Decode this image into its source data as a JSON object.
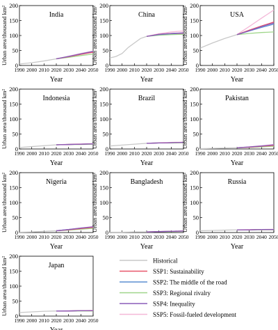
{
  "figure": {
    "ylabel": "Urban area/thousand km²",
    "xlabel": "Year"
  },
  "legend": [
    {
      "key": "historical",
      "label": "Historical",
      "color": "#c8c8c8"
    },
    {
      "key": "ssp1",
      "label": "SSP1: Sustainability",
      "color": "#e8566a"
    },
    {
      "key": "ssp2",
      "label": "SSP2: The middle of the road",
      "color": "#5b8fd1"
    },
    {
      "key": "ssp3",
      "label": "SSP3: Regional rivalry",
      "color": "#9fd68a"
    },
    {
      "key": "ssp4",
      "label": "SSP4: Inequality",
      "color": "#8a5bb8"
    },
    {
      "key": "ssp5",
      "label": "SSP5: Fossil-fueled development",
      "color": "#f4b8d8"
    }
  ],
  "chart_data": [
    {
      "type": "line",
      "title": "India",
      "ylim": [
        0,
        200
      ],
      "xlim": [
        1990,
        2050
      ],
      "yticks": [
        0,
        50,
        100,
        150,
        200
      ],
      "xticks": [
        1990,
        2000,
        2010,
        2020,
        2030,
        2040,
        2050
      ],
      "historical": {
        "x": [
          1990,
          2000,
          2010,
          2020
        ],
        "y": [
          5,
          9,
          15,
          22
        ]
      },
      "x": [
        2020,
        2030,
        2040,
        2050
      ],
      "series": [
        {
          "key": "ssp1",
          "values": [
            22,
            29,
            37,
            44
          ]
        },
        {
          "key": "ssp2",
          "values": [
            22,
            30,
            38,
            46
          ]
        },
        {
          "key": "ssp3",
          "values": [
            22,
            27,
            33,
            38
          ]
        },
        {
          "key": "ssp4",
          "values": [
            22,
            30,
            39,
            47
          ]
        },
        {
          "key": "ssp5",
          "values": [
            22,
            31,
            40,
            48
          ]
        }
      ]
    },
    {
      "type": "line",
      "title": "China",
      "ylim": [
        0,
        200
      ],
      "xlim": [
        1990,
        2050
      ],
      "yticks": [
        0,
        50,
        100,
        150,
        200
      ],
      "xticks": [
        1990,
        2000,
        2010,
        2020,
        2030,
        2040,
        2050
      ],
      "historical": {
        "x": [
          1990,
          1995,
          2000,
          2005,
          2010,
          2015,
          2020
        ],
        "y": [
          25,
          30,
          40,
          60,
          75,
          90,
          97
        ]
      },
      "x": [
        2020,
        2030,
        2040,
        2050
      ],
      "series": [
        {
          "key": "ssp1",
          "values": [
            97,
            104,
            107,
            108
          ]
        },
        {
          "key": "ssp2",
          "values": [
            97,
            103,
            106,
            107
          ]
        },
        {
          "key": "ssp3",
          "values": [
            97,
            101,
            103,
            104
          ]
        },
        {
          "key": "ssp4",
          "values": [
            97,
            104,
            107,
            109
          ]
        },
        {
          "key": "ssp5",
          "values": [
            97,
            106,
            112,
            115
          ]
        }
      ]
    },
    {
      "type": "line",
      "title": "USA",
      "ylim": [
        0,
        200
      ],
      "xlim": [
        1990,
        2050
      ],
      "yticks": [
        0,
        50,
        100,
        150,
        200
      ],
      "xticks": [
        1990,
        2000,
        2010,
        2020,
        2030,
        2040,
        2050
      ],
      "historical": {
        "x": [
          1990,
          2000,
          2010,
          2020
        ],
        "y": [
          58,
          75,
          90,
          103
        ]
      },
      "x": [
        2020,
        2030,
        2040,
        2050
      ],
      "series": [
        {
          "key": "ssp1",
          "values": [
            103,
            118,
            132,
            145
          ]
        },
        {
          "key": "ssp2",
          "values": [
            103,
            115,
            127,
            138
          ]
        },
        {
          "key": "ssp3",
          "values": [
            103,
            107,
            110,
            112
          ]
        },
        {
          "key": "ssp4",
          "values": [
            103,
            116,
            130,
            142
          ]
        },
        {
          "key": "ssp5",
          "values": [
            103,
            130,
            158,
            185
          ]
        }
      ]
    },
    {
      "type": "line",
      "title": "Indonesia",
      "ylim": [
        0,
        200
      ],
      "xlim": [
        1990,
        2050
      ],
      "yticks": [
        0,
        50,
        100,
        150,
        200
      ],
      "xticks": [
        1990,
        2000,
        2010,
        2020,
        2030,
        2040,
        2050
      ],
      "historical": {
        "x": [
          1990,
          2000,
          2010,
          2020
        ],
        "y": [
          5,
          8,
          11,
          14
        ]
      },
      "x": [
        2020,
        2030,
        2040,
        2050
      ],
      "series": [
        {
          "key": "ssp1",
          "values": [
            14,
            15,
            16,
            17
          ]
        },
        {
          "key": "ssp2",
          "values": [
            14,
            15,
            16,
            17
          ]
        },
        {
          "key": "ssp3",
          "values": [
            14,
            15,
            15,
            16
          ]
        },
        {
          "key": "ssp4",
          "values": [
            14,
            15,
            16,
            17
          ]
        },
        {
          "key": "ssp5",
          "values": [
            14,
            16,
            17,
            18
          ]
        }
      ]
    },
    {
      "type": "line",
      "title": "Brazil",
      "ylim": [
        0,
        200
      ],
      "xlim": [
        1990,
        2050
      ],
      "yticks": [
        0,
        50,
        100,
        150,
        200
      ],
      "xticks": [
        1990,
        2000,
        2010,
        2020,
        2030,
        2040,
        2050
      ],
      "historical": {
        "x": [
          1990,
          2000,
          2010,
          2020
        ],
        "y": [
          10,
          13,
          16,
          19
        ]
      },
      "x": [
        2020,
        2030,
        2040,
        2050
      ],
      "series": [
        {
          "key": "ssp1",
          "values": [
            19,
            20,
            21,
            22
          ]
        },
        {
          "key": "ssp2",
          "values": [
            19,
            20,
            21,
            22
          ]
        },
        {
          "key": "ssp3",
          "values": [
            19,
            20,
            20,
            21
          ]
        },
        {
          "key": "ssp4",
          "values": [
            19,
            20,
            21,
            22
          ]
        },
        {
          "key": "ssp5",
          "values": [
            19,
            21,
            22,
            23
          ]
        }
      ]
    },
    {
      "type": "line",
      "title": "Pakistan",
      "ylim": [
        0,
        200
      ],
      "xlim": [
        1990,
        2050
      ],
      "yticks": [
        0,
        50,
        100,
        150,
        200
      ],
      "xticks": [
        1990,
        2000,
        2010,
        2020,
        2030,
        2040,
        2050
      ],
      "historical": {
        "x": [
          1990,
          2000,
          2010,
          2020
        ],
        "y": [
          1,
          2,
          3,
          4
        ]
      },
      "x": [
        2020,
        2030,
        2040,
        2050
      ],
      "series": [
        {
          "key": "ssp1",
          "values": [
            4,
            6,
            9,
            12
          ]
        },
        {
          "key": "ssp2",
          "values": [
            4,
            6,
            9,
            13
          ]
        },
        {
          "key": "ssp3",
          "values": [
            4,
            5,
            7,
            9
          ]
        },
        {
          "key": "ssp4",
          "values": [
            4,
            7,
            10,
            14
          ]
        },
        {
          "key": "ssp5",
          "values": [
            4,
            7,
            11,
            15
          ]
        }
      ]
    },
    {
      "type": "line",
      "title": "Nigeria",
      "ylim": [
        0,
        200
      ],
      "xlim": [
        1990,
        2050
      ],
      "yticks": [
        0,
        50,
        100,
        150,
        200
      ],
      "xticks": [
        1990,
        2000,
        2010,
        2020,
        2030,
        2040,
        2050
      ],
      "historical": {
        "x": [
          1990,
          2000,
          2010,
          2020
        ],
        "y": [
          1,
          2,
          4,
          6
        ]
      },
      "x": [
        2020,
        2030,
        2040,
        2050
      ],
      "series": [
        {
          "key": "ssp1",
          "values": [
            6,
            9,
            13,
            17
          ]
        },
        {
          "key": "ssp2",
          "values": [
            6,
            10,
            14,
            18
          ]
        },
        {
          "key": "ssp3",
          "values": [
            6,
            8,
            11,
            14
          ]
        },
        {
          "key": "ssp4",
          "values": [
            6,
            10,
            15,
            19
          ]
        },
        {
          "key": "ssp5",
          "values": [
            6,
            10,
            15,
            20
          ]
        }
      ]
    },
    {
      "type": "line",
      "title": "Bangladesh",
      "ylim": [
        0,
        200
      ],
      "xlim": [
        1990,
        2050
      ],
      "yticks": [
        0,
        50,
        100,
        150,
        200
      ],
      "xticks": [
        1990,
        2000,
        2010,
        2020,
        2030,
        2040,
        2050
      ],
      "historical": {
        "x": [
          1990,
          2000,
          2010,
          2020
        ],
        "y": [
          1,
          1,
          2,
          2
        ]
      },
      "x": [
        2020,
        2030,
        2040,
        2050
      ],
      "series": [
        {
          "key": "ssp1",
          "values": [
            2,
            3,
            4,
            5
          ]
        },
        {
          "key": "ssp2",
          "values": [
            2,
            3,
            4,
            5
          ]
        },
        {
          "key": "ssp3",
          "values": [
            2,
            3,
            3,
            4
          ]
        },
        {
          "key": "ssp4",
          "values": [
            2,
            3,
            4,
            5
          ]
        },
        {
          "key": "ssp5",
          "values": [
            2,
            3,
            4,
            6
          ]
        }
      ]
    },
    {
      "type": "line",
      "title": "Russia",
      "ylim": [
        0,
        200
      ],
      "xlim": [
        1990,
        2050
      ],
      "yticks": [
        0,
        50,
        100,
        150,
        200
      ],
      "xticks": [
        1990,
        2000,
        2010,
        2020,
        2030,
        2040,
        2050
      ],
      "historical": {
        "x": [
          1990,
          2000,
          2010,
          2020
        ],
        "y": [
          6,
          7,
          8,
          9
        ]
      },
      "x": [
        2020,
        2030,
        2040,
        2050
      ],
      "series": [
        {
          "key": "ssp1",
          "values": [
            9,
            9,
            10,
            10
          ]
        },
        {
          "key": "ssp2",
          "values": [
            9,
            9,
            10,
            10
          ]
        },
        {
          "key": "ssp3",
          "values": [
            9,
            9,
            9,
            9
          ]
        },
        {
          "key": "ssp4",
          "values": [
            9,
            9,
            10,
            10
          ]
        },
        {
          "key": "ssp5",
          "values": [
            9,
            10,
            10,
            11
          ]
        }
      ]
    },
    {
      "type": "line",
      "title": "Japan",
      "ylim": [
        0,
        200
      ],
      "xlim": [
        1990,
        2050
      ],
      "yticks": [
        0,
        50,
        100,
        150,
        200
      ],
      "xticks": [
        1990,
        2000,
        2010,
        2020,
        2030,
        2040,
        2050
      ],
      "historical": {
        "x": [
          1990,
          2000,
          2010,
          2020
        ],
        "y": [
          12,
          14,
          16,
          17
        ]
      },
      "x": [
        2020,
        2030,
        2040,
        2050
      ],
      "series": [
        {
          "key": "ssp1",
          "values": [
            17,
            17,
            18,
            18
          ]
        },
        {
          "key": "ssp2",
          "values": [
            17,
            17,
            18,
            18
          ]
        },
        {
          "key": "ssp3",
          "values": [
            17,
            17,
            17,
            17
          ]
        },
        {
          "key": "ssp4",
          "values": [
            17,
            17,
            18,
            18
          ]
        },
        {
          "key": "ssp5",
          "values": [
            17,
            18,
            18,
            19
          ]
        }
      ]
    }
  ]
}
